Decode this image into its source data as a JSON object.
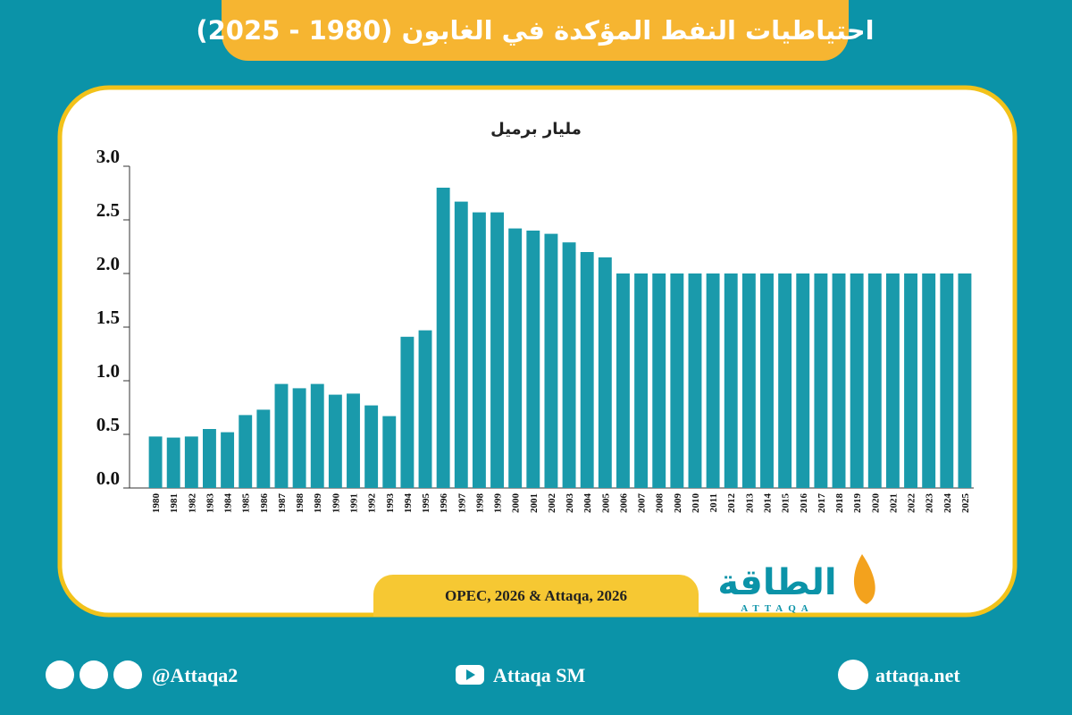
{
  "chart_data": {
    "type": "bar",
    "title": "احتياطيات النفط المؤكدة في الغابون (1980 - 2025)",
    "y_label": "مليار برميل",
    "source": "OPEC, 2026 & Attaqa, 2026",
    "logo": {
      "name": "الطاقة",
      "latin": "ATTAQA"
    },
    "footer": {
      "social": "@Attaqa2",
      "youtube": "Attaqa SM",
      "website": "attaqa.net"
    },
    "categories": [
      "1980",
      "1981",
      "1982",
      "1983",
      "1984",
      "1985",
      "1986",
      "1987",
      "1988",
      "1989",
      "1990",
      "1991",
      "1992",
      "1993",
      "1994",
      "1995",
      "1996",
      "1997",
      "1998",
      "1999",
      "2000",
      "2001",
      "2002",
      "2003",
      "2004",
      "2005",
      "2006",
      "2007",
      "2008",
      "2009",
      "2010",
      "2011",
      "2012",
      "2013",
      "2014",
      "2015",
      "2016",
      "2017",
      "2018",
      "2019",
      "2020",
      "2021",
      "2022",
      "2023",
      "2024",
      "2025"
    ],
    "values": [
      0.48,
      0.47,
      0.48,
      0.55,
      0.52,
      0.68,
      0.73,
      0.97,
      0.93,
      0.97,
      0.87,
      0.88,
      0.77,
      0.67,
      1.41,
      1.47,
      2.8,
      2.67,
      2.57,
      2.57,
      2.42,
      2.4,
      2.37,
      2.29,
      2.2,
      2.15,
      2,
      2,
      2,
      2,
      2,
      2,
      2,
      2,
      2,
      2,
      2,
      2,
      2,
      2,
      2,
      2,
      2,
      2,
      2,
      2
    ],
    "color": "#1a9aab",
    "ylim": [
      0,
      3
    ],
    "yticks": [
      {
        "value": 0,
        "label": "0.0"
      },
      0.5,
      {
        "value": 1,
        "label": "1.0"
      },
      1.5,
      {
        "value": 2,
        "label": "2.0"
      },
      2.5,
      {
        "value": 3,
        "label": "3.0"
      }
    ],
    "grid": false
  }
}
